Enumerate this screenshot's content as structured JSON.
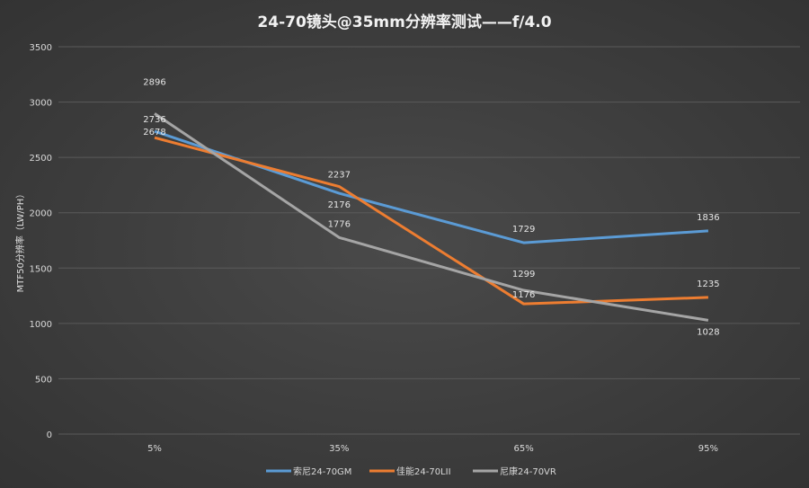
{
  "chart_data": {
    "type": "line",
    "title": "24-70镜头@35mm分辨率测试——f/4.0",
    "xlabel": "",
    "ylabel": "MTF50分辨率（LW/PH）",
    "categories": [
      "5%",
      "35%",
      "65%",
      "95%"
    ],
    "ylim": [
      0,
      3500
    ],
    "yticks": [
      0,
      500,
      1000,
      1500,
      2000,
      2500,
      3000,
      3500
    ],
    "grid": true,
    "legend": "bottom",
    "series": [
      {
        "name": "索尼24-70GM",
        "color": "#5b9bd5",
        "values": [
          2736,
          2176,
          1729,
          1836
        ]
      },
      {
        "name": "佳能24-70LII",
        "color": "#ed7d31",
        "values": [
          2678,
          2237,
          1176,
          1235
        ]
      },
      {
        "name": "尼康24-70VR",
        "color": "#a5a5a5",
        "values": [
          2896,
          1776,
          1299,
          1028
        ]
      }
    ]
  }
}
